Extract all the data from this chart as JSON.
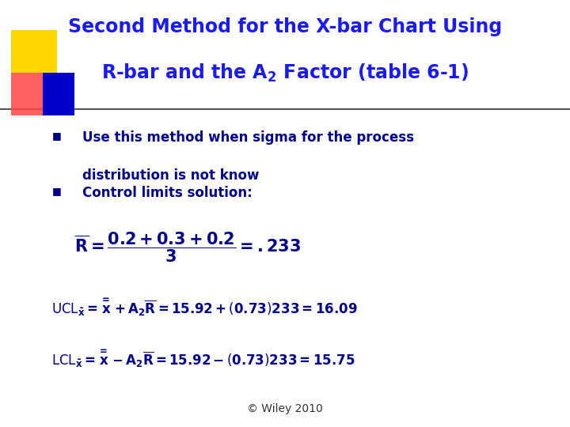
{
  "title_line1": "Second Method for the X-bar Chart Using",
  "title_line2": "R-bar and the A",
  "title_sub": "2",
  "title_line2_end": " Factor (table 6-1)",
  "bullet1_line1": "Use this method when sigma for the process",
  "bullet1_line2": "distribution is not know",
  "bullet2": "Control limits solution:",
  "footer": "© Wiley 2010",
  "title_color": "#1a1aff",
  "bullet_color": "#00008B",
  "bg_color": "#ffffff",
  "accent_yellow": "#FFD700",
  "accent_red": "#FF4444",
  "accent_blue": "#0000CC",
  "line_color": "#555555",
  "formula_color": "#00008B",
  "footer_color": "#333333"
}
